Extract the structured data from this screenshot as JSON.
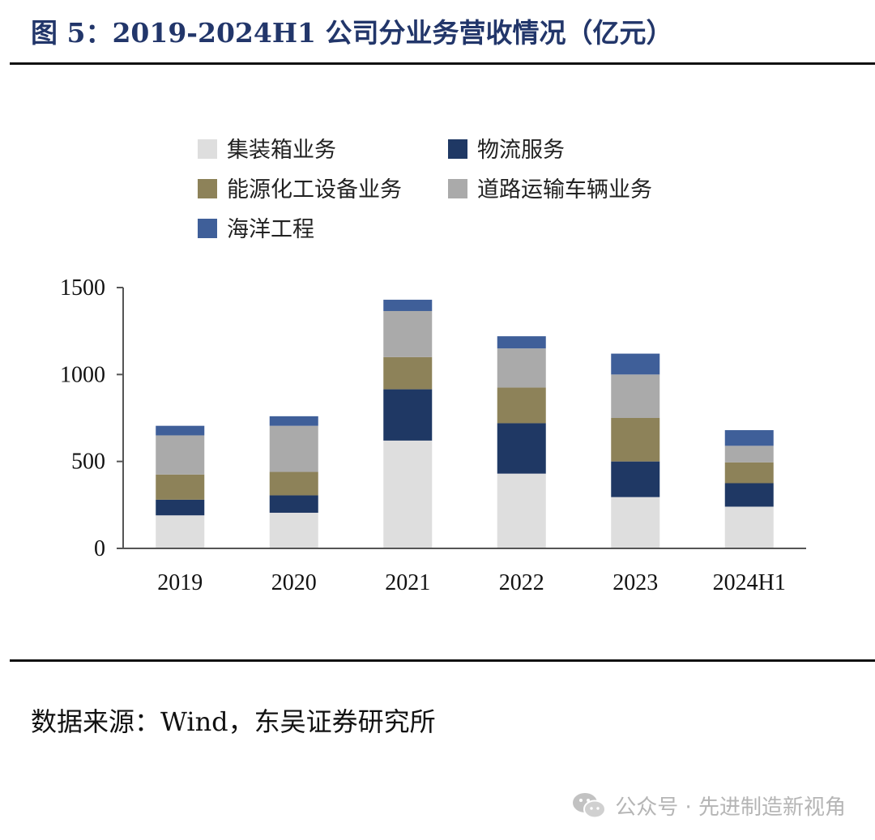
{
  "title": "图 5：2019-2024H1 公司分业务营收情况（亿元）",
  "source": "数据来源：Wind，东吴证券研究所",
  "watermark": {
    "text": "公众号 · 先进制造新视角",
    "icon": "wechat-icon"
  },
  "chart_data": {
    "type": "bar",
    "stacked": true,
    "title": "2019-2024H1 公司分业务营收情况（亿元）",
    "xlabel": "",
    "ylabel": "",
    "ylim": [
      0,
      1500
    ],
    "yticks": [
      "0",
      "500",
      "1000",
      "1500"
    ],
    "grid": false,
    "legend_position": "top",
    "categories": [
      "2019",
      "2020",
      "2021",
      "2022",
      "2023",
      "2024H1"
    ],
    "series": [
      {
        "name": "集装箱业务",
        "color": "#dedede",
        "values": [
          190,
          205,
          620,
          430,
          295,
          240
        ]
      },
      {
        "name": "物流服务",
        "color": "#1f3864",
        "values": [
          90,
          100,
          295,
          290,
          205,
          135
        ]
      },
      {
        "name": "能源化工设备业务",
        "color": "#8d8259",
        "values": [
          145,
          135,
          185,
          205,
          250,
          120
        ]
      },
      {
        "name": "道路运输车辆业务",
        "color": "#aaaaaa",
        "values": [
          225,
          265,
          265,
          225,
          250,
          95
        ]
      },
      {
        "name": "海洋工程",
        "color": "#3f5f99",
        "values": [
          55,
          55,
          65,
          70,
          120,
          90
        ]
      }
    ]
  }
}
